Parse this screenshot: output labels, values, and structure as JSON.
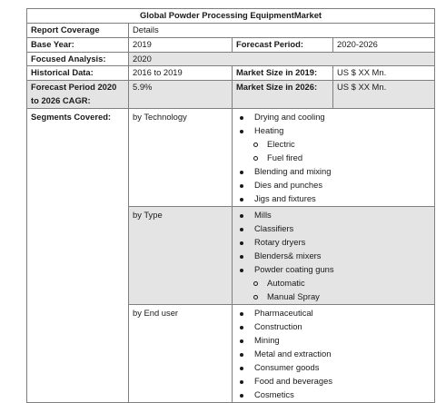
{
  "title": "Global Powder Processing EquipmentMarket",
  "rows": {
    "report_coverage": {
      "label": "Report Coverage",
      "value": "Details"
    },
    "base_year": {
      "label": "Base Year:",
      "value": "2019",
      "label2": "Forecast Period:",
      "value2": "2020-2026"
    },
    "focused_analysis": {
      "label": "Focused Analysis:",
      "value": "2020"
    },
    "historical_data": {
      "label": "Historical Data:",
      "value": "2016 to 2019",
      "label2": "Market Size in 2019:",
      "value2": "US $ XX Mn."
    },
    "forecast_cagr": {
      "label": "Forecast Period 2020 to 2026 CAGR:",
      "value": "5.9%",
      "label2": "Market Size in 2026:",
      "value2": "US $ XX Mn."
    }
  },
  "segments": {
    "label": "Segments Covered:",
    "groups": [
      {
        "name": "by Technology",
        "items": [
          {
            "text": "Drying and cooling",
            "level": 1
          },
          {
            "text": "Heating",
            "level": 1
          },
          {
            "text": "Electric",
            "level": 2
          },
          {
            "text": "Fuel fired",
            "level": 2
          },
          {
            "text": "Blending and mixing",
            "level": 1
          },
          {
            "text": "Dies and punches",
            "level": 1
          },
          {
            "text": "Jigs and fixtures",
            "level": 1
          }
        ]
      },
      {
        "name": "by Type",
        "items": [
          {
            "text": "Mills",
            "level": 1
          },
          {
            "text": "Classifiers",
            "level": 1
          },
          {
            "text": "Rotary dryers",
            "level": 1
          },
          {
            "text": "Blenders& mixers",
            "level": 1
          },
          {
            "text": "Powder coating guns",
            "level": 1
          },
          {
            "text": "Automatic",
            "level": 2
          },
          {
            "text": "Manual Spray",
            "level": 2
          }
        ]
      },
      {
        "name": "by End user",
        "items": [
          {
            "text": "Pharmaceutical",
            "level": 1
          },
          {
            "text": "Construction",
            "level": 1
          },
          {
            "text": "Mining",
            "level": 1
          },
          {
            "text": "Metal and extraction",
            "level": 1
          },
          {
            "text": "Consumer goods",
            "level": 1
          },
          {
            "text": "Food and beverages",
            "level": 1
          },
          {
            "text": "Cosmetics",
            "level": 1
          }
        ]
      }
    ]
  }
}
